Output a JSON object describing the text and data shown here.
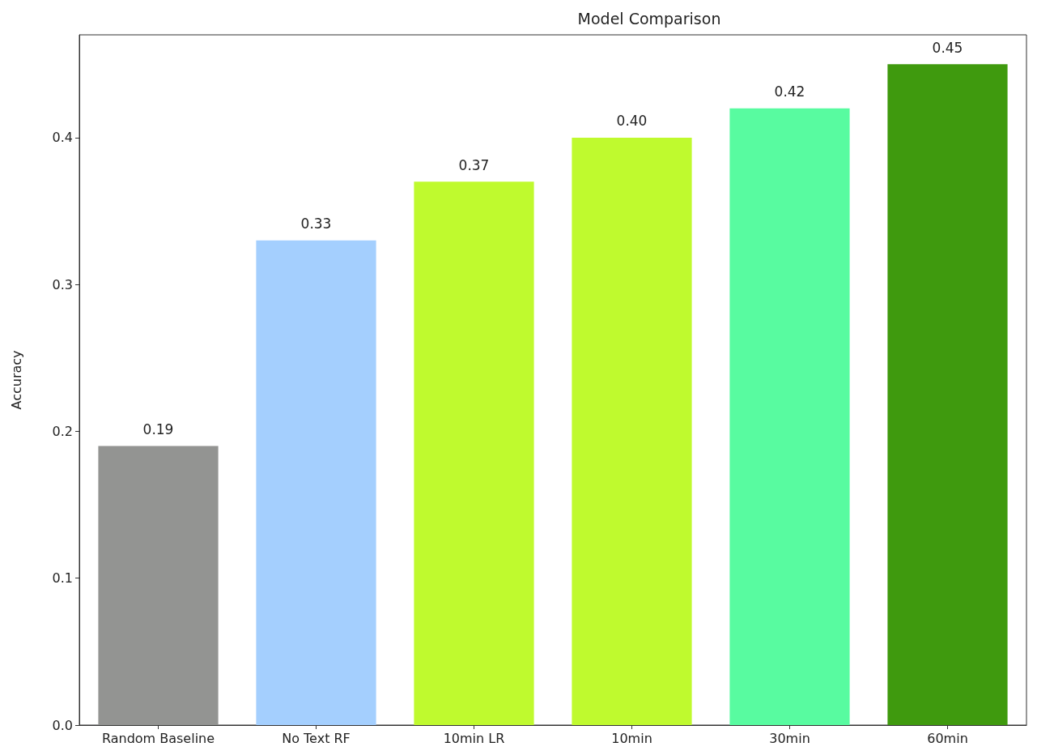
{
  "chart_data": {
    "type": "bar",
    "title": "Model Comparison",
    "ylabel": "Accuracy",
    "categories": [
      "Random Baseline",
      "No Text RF",
      "10min LR",
      "10min",
      "30min",
      "60min"
    ],
    "values": [
      0.19,
      0.33,
      0.37,
      0.4,
      0.42,
      0.45
    ],
    "colors": [
      "#939492",
      "#a4cffe",
      "#bffa2e",
      "#bffa2e",
      "#58fba0",
      "#3f9a0e"
    ],
    "value_labels": [
      "0.19",
      "0.33",
      "0.37",
      "0.40",
      "0.42",
      "0.45"
    ],
    "ylim": [
      0,
      0.47
    ],
    "yticks": [
      {
        "value": 0,
        "label": "0.0"
      },
      {
        "value": 0.1,
        "label": "0.1"
      },
      {
        "value": 0.2,
        "label": "0.2"
      },
      {
        "value": 0.3,
        "label": "0.3"
      },
      {
        "value": 0.4,
        "label": "0.4"
      }
    ],
    "grid": false
  }
}
